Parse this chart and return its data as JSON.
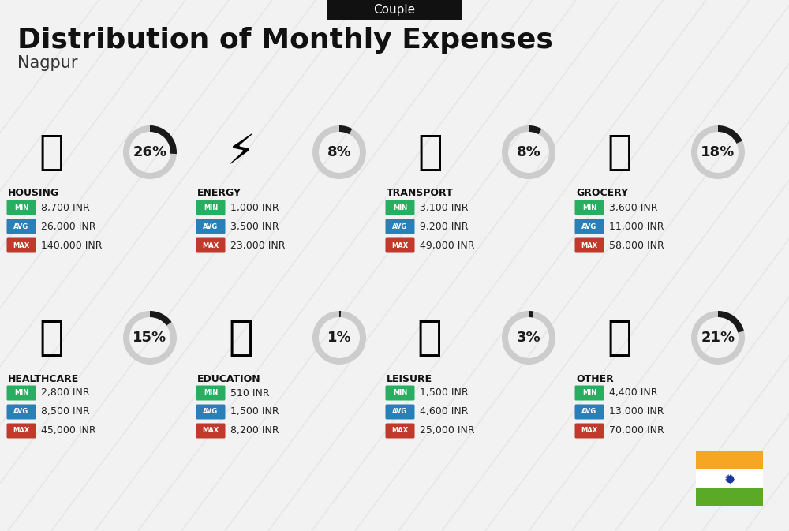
{
  "title": "Distribution of Monthly Expenses",
  "subtitle": "Couple",
  "city": "Nagpur",
  "bg_color": "#f2f2f2",
  "categories": [
    {
      "name": "HOUSING",
      "pct": 26,
      "min": "8,700 INR",
      "avg": "26,000 INR",
      "max": "140,000 INR",
      "row": 0,
      "col": 0
    },
    {
      "name": "ENERGY",
      "pct": 8,
      "min": "1,000 INR",
      "avg": "3,500 INR",
      "max": "23,000 INR",
      "row": 0,
      "col": 1
    },
    {
      "name": "TRANSPORT",
      "pct": 8,
      "min": "3,100 INR",
      "avg": "9,200 INR",
      "max": "49,000 INR",
      "row": 0,
      "col": 2
    },
    {
      "name": "GROCERY",
      "pct": 18,
      "min": "3,600 INR",
      "avg": "11,000 INR",
      "max": "58,000 INR",
      "row": 0,
      "col": 3
    },
    {
      "name": "HEALTHCARE",
      "pct": 15,
      "min": "2,800 INR",
      "avg": "8,500 INR",
      "max": "45,000 INR",
      "row": 1,
      "col": 0
    },
    {
      "name": "EDUCATION",
      "pct": 1,
      "min": "510 INR",
      "avg": "1,500 INR",
      "max": "8,200 INR",
      "row": 1,
      "col": 1
    },
    {
      "name": "LEISURE",
      "pct": 3,
      "min": "1,500 INR",
      "avg": "4,600 INR",
      "max": "25,000 INR",
      "row": 1,
      "col": 2
    },
    {
      "name": "OTHER",
      "pct": 21,
      "min": "4,400 INR",
      "avg": "13,000 INR",
      "max": "70,000 INR",
      "row": 1,
      "col": 3
    }
  ],
  "color_min": "#27ae60",
  "color_avg": "#2980b9",
  "color_max": "#c0392b",
  "flag_orange": "#f5a623",
  "flag_green": "#5aaa28",
  "flag_white": "#ffffff",
  "ring_bg": "#cccccc",
  "ring_fg": "#1a1a1a",
  "stripe_color": "#d0d0d0",
  "couple_bg": "#111111",
  "title_color": "#111111",
  "city_color": "#333333",
  "label_color": "#111111"
}
